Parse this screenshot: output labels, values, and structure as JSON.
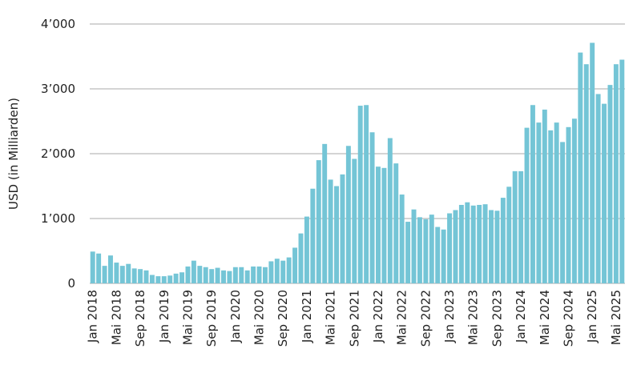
{
  "chart_data": {
    "type": "bar",
    "title": "",
    "xlabel": "",
    "ylabel": "USD (in Milliarden)",
    "ylim": [
      0,
      4000
    ],
    "yticks": [
      {
        "value": 0,
        "label": "0"
      },
      {
        "value": 1000,
        "label": "1’000"
      },
      {
        "value": 2000,
        "label": "2’000"
      },
      {
        "value": 3000,
        "label": "3’000"
      },
      {
        "value": 4000,
        "label": "4’000"
      }
    ],
    "xtick_labels": [
      {
        "month_index": 0,
        "label": "Jan 2018"
      },
      {
        "month_index": 4,
        "label": "Mai 2018"
      },
      {
        "month_index": 8,
        "label": "Sep 2018"
      },
      {
        "month_index": 12,
        "label": "Jan 2019"
      },
      {
        "month_index": 16,
        "label": "Mai 2019"
      },
      {
        "month_index": 20,
        "label": "Sep 2019"
      },
      {
        "month_index": 24,
        "label": "Jan 2020"
      },
      {
        "month_index": 28,
        "label": "Mai 2020"
      },
      {
        "month_index": 32,
        "label": "Sep 2020"
      },
      {
        "month_index": 36,
        "label": "Jan 2021"
      },
      {
        "month_index": 40,
        "label": "Mai 2021"
      },
      {
        "month_index": 44,
        "label": "Sep 2021"
      },
      {
        "month_index": 48,
        "label": "Jan 2022"
      },
      {
        "month_index": 52,
        "label": "Mai 2022"
      },
      {
        "month_index": 56,
        "label": "Sep 2022"
      },
      {
        "month_index": 60,
        "label": "Jan 2023"
      },
      {
        "month_index": 64,
        "label": "Mai 2023"
      },
      {
        "month_index": 68,
        "label": "Sep 2023"
      },
      {
        "month_index": 72,
        "label": "Jan 2024"
      },
      {
        "month_index": 76,
        "label": "Mai 2024"
      },
      {
        "month_index": 80,
        "label": "Sep 2024"
      },
      {
        "month_index": 84,
        "label": "Jan 2025"
      },
      {
        "month_index": 88,
        "label": "Mai 2025"
      }
    ],
    "values": [
      490,
      460,
      270,
      430,
      320,
      270,
      300,
      230,
      220,
      200,
      130,
      110,
      110,
      120,
      150,
      170,
      260,
      350,
      270,
      250,
      220,
      240,
      200,
      190,
      250,
      250,
      200,
      260,
      260,
      250,
      340,
      380,
      350,
      400,
      550,
      770,
      1030,
      1460,
      1900,
      2150,
      1600,
      1500,
      1680,
      2120,
      1920,
      2740,
      2750,
      2330,
      1800,
      1780,
      2240,
      1850,
      1370,
      950,
      1140,
      1020,
      990,
      1060,
      870,
      830,
      1080,
      1130,
      1210,
      1250,
      1200,
      1210,
      1220,
      1130,
      1120,
      1320,
      1490,
      1730,
      1730,
      2400,
      2750,
      2480,
      2680,
      2360,
      2480,
      2180,
      2410,
      2540,
      3560,
      3380,
      3710,
      2920,
      2770,
      3060,
      3380,
      3450
    ],
    "bar_color": "#74c5d6",
    "grid_color": "#d4d4d4",
    "grid": true,
    "legend": "none"
  }
}
